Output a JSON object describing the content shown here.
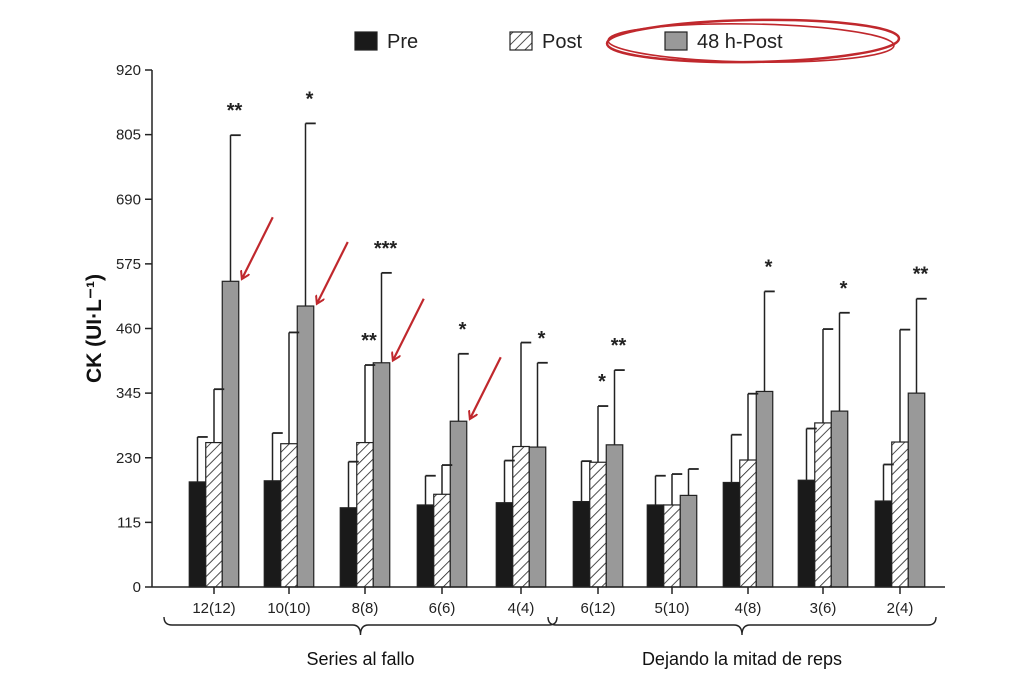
{
  "chart_data": {
    "type": "bar",
    "ylabel": "CK (UI·L⁻¹)",
    "ylim": [
      0,
      920
    ],
    "yticks": [
      0,
      115,
      230,
      345,
      460,
      575,
      690,
      805,
      920
    ],
    "categories": [
      "12(12)",
      "10(10)",
      "8(8)",
      "6(6)",
      "4(4)",
      "6(12)",
      "5(10)",
      "4(8)",
      "3(6)",
      "2(4)"
    ],
    "groups": [
      {
        "label": "Series al fallo",
        "from": 0,
        "to": 4
      },
      {
        "label": "Dejando la mitad de reps",
        "from": 5,
        "to": 9
      }
    ],
    "legend_position": "top",
    "series": [
      {
        "name": "Pre",
        "color": "#1a1a1a",
        "pattern": "solid",
        "values": [
          187,
          189,
          141,
          146,
          150,
          152,
          146,
          186,
          190,
          153
        ],
        "errors": [
          80,
          85,
          82,
          52,
          75,
          72,
          52,
          85,
          92,
          65
        ]
      },
      {
        "name": "Post",
        "color": "#ffffff",
        "pattern": "hatched",
        "values": [
          257,
          255,
          257,
          165,
          250,
          222,
          146,
          226,
          292,
          258
        ],
        "errors": [
          95,
          198,
          138,
          52,
          185,
          100,
          55,
          118,
          167,
          200
        ]
      },
      {
        "name": "48 h-Post",
        "color": "#999999",
        "pattern": "solid",
        "values": [
          544,
          500,
          399,
          295,
          249,
          253,
          163,
          348,
          313,
          345
        ],
        "errors": [
          260,
          325,
          160,
          120,
          150,
          133,
          47,
          178,
          175,
          168
        ]
      }
    ],
    "significance": [
      {
        "category": 0,
        "series": 2,
        "label": "**"
      },
      {
        "category": 1,
        "series": 2,
        "label": "*"
      },
      {
        "category": 2,
        "series": 1,
        "label": "**"
      },
      {
        "category": 2,
        "series": 2,
        "label": "***"
      },
      {
        "category": 3,
        "series": 2,
        "label": "*"
      },
      {
        "category": 4,
        "series": 2,
        "label": "*"
      },
      {
        "category": 5,
        "series": 1,
        "label": "*"
      },
      {
        "category": 5,
        "series": 2,
        "label": "**"
      },
      {
        "category": 7,
        "series": 2,
        "label": "*"
      },
      {
        "category": 8,
        "series": 2,
        "label": "*"
      },
      {
        "category": 9,
        "series": 2,
        "label": "**"
      }
    ],
    "highlighted_legend": "48 h-Post",
    "arrow_targets": [
      0,
      1,
      2,
      3
    ],
    "annotation_color": "#c0282d"
  }
}
